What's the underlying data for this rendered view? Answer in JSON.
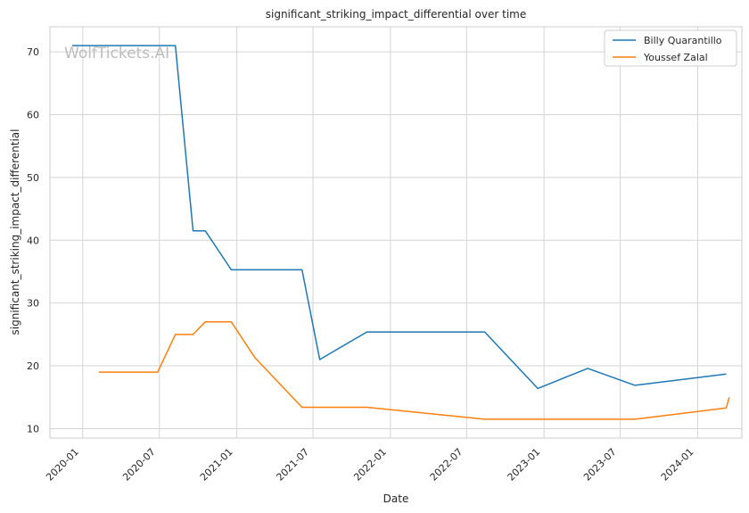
{
  "chart_data": {
    "type": "line",
    "title": "significant_striking_impact_differential over time",
    "xlabel": "Date",
    "ylabel": "significant_striking_impact_differential",
    "watermark": "WolfTickets.AI",
    "xlim": [
      "2019-10-15",
      "2024-04-15"
    ],
    "ylim": [
      8.5,
      74
    ],
    "grid": true,
    "legend_position": "top-right",
    "x_ticks": [
      "2020-01",
      "2020-07",
      "2021-01",
      "2021-07",
      "2022-01",
      "2022-07",
      "2023-01",
      "2023-07",
      "2024-01"
    ],
    "y_ticks": [
      10,
      20,
      30,
      40,
      50,
      60,
      70
    ],
    "series": [
      {
        "name": "Billy Quarantillo",
        "color": "#1f77b4",
        "points": [
          [
            "2019-12-07",
            71.0
          ],
          [
            "2020-08-08",
            71.0
          ],
          [
            "2020-09-19",
            41.5
          ],
          [
            "2020-10-18",
            41.5
          ],
          [
            "2020-12-19",
            35.3
          ],
          [
            "2021-06-05",
            35.3
          ],
          [
            "2021-07-17",
            21.0
          ],
          [
            "2021-11-06",
            25.4
          ],
          [
            "2022-08-13",
            25.4
          ],
          [
            "2022-12-17",
            16.4
          ],
          [
            "2023-04-15",
            19.6
          ],
          [
            "2023-08-05",
            16.9
          ],
          [
            "2024-03-09",
            18.7
          ]
        ]
      },
      {
        "name": "Youssef Zalal",
        "color": "#ff7f0e",
        "points": [
          [
            "2020-02-08",
            19.0
          ],
          [
            "2020-06-27",
            19.0
          ],
          [
            "2020-08-08",
            25.0
          ],
          [
            "2020-09-19",
            25.0
          ],
          [
            "2020-10-18",
            27.0
          ],
          [
            "2020-12-19",
            27.0
          ],
          [
            "2021-02-13",
            21.3
          ],
          [
            "2021-06-05",
            13.4
          ],
          [
            "2021-11-06",
            13.4
          ],
          [
            "2022-08-13",
            11.5
          ],
          [
            "2023-08-05",
            11.5
          ],
          [
            "2024-03-09",
            13.3
          ],
          [
            "2024-03-16",
            15.0
          ]
        ]
      }
    ]
  }
}
